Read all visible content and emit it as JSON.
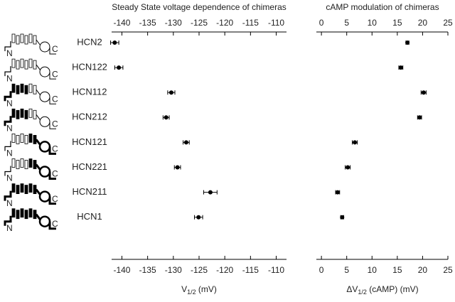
{
  "chart_data": [
    {
      "type": "dot",
      "title": "Steady State voltage dependence of chimeras",
      "categories": [
        "HCN2",
        "HCN122",
        "HCN112",
        "HCN212",
        "HCN121",
        "HCN221",
        "HCN211",
        "HCN1"
      ],
      "values": [
        -141.4,
        -140.6,
        -130.4,
        -131.4,
        -127.5,
        -129.2,
        -122.8,
        -125.1
      ],
      "errors": [
        0.8,
        0.8,
        0.7,
        0.6,
        0.6,
        0.6,
        1.3,
        0.8
      ],
      "color": "#000000",
      "xlim": [
        -142,
        -108
      ],
      "xticks": [
        -140,
        -135,
        -130,
        -125,
        -120,
        -115,
        -110
      ],
      "xlabel": {
        "main": "V",
        "sub": "1/2",
        "rest": " (mV)"
      }
    },
    {
      "type": "dot",
      "title": "cAMP modulation of chimeras",
      "values": [
        17.0,
        15.7,
        20.2,
        19.4,
        6.6,
        5.2,
        3.2,
        4.1
      ],
      "errors": [
        0.3,
        0.4,
        0.5,
        0.4,
        0.5,
        0.5,
        0.4,
        0.3
      ],
      "color": "#000000",
      "xlim": [
        -1,
        25
      ],
      "xticks": [
        0,
        5,
        10,
        15,
        20,
        25
      ],
      "xlabel": {
        "main": "ΔV",
        "sub": "1/2",
        "rest": " (cAMP) (mV)"
      }
    }
  ]
}
